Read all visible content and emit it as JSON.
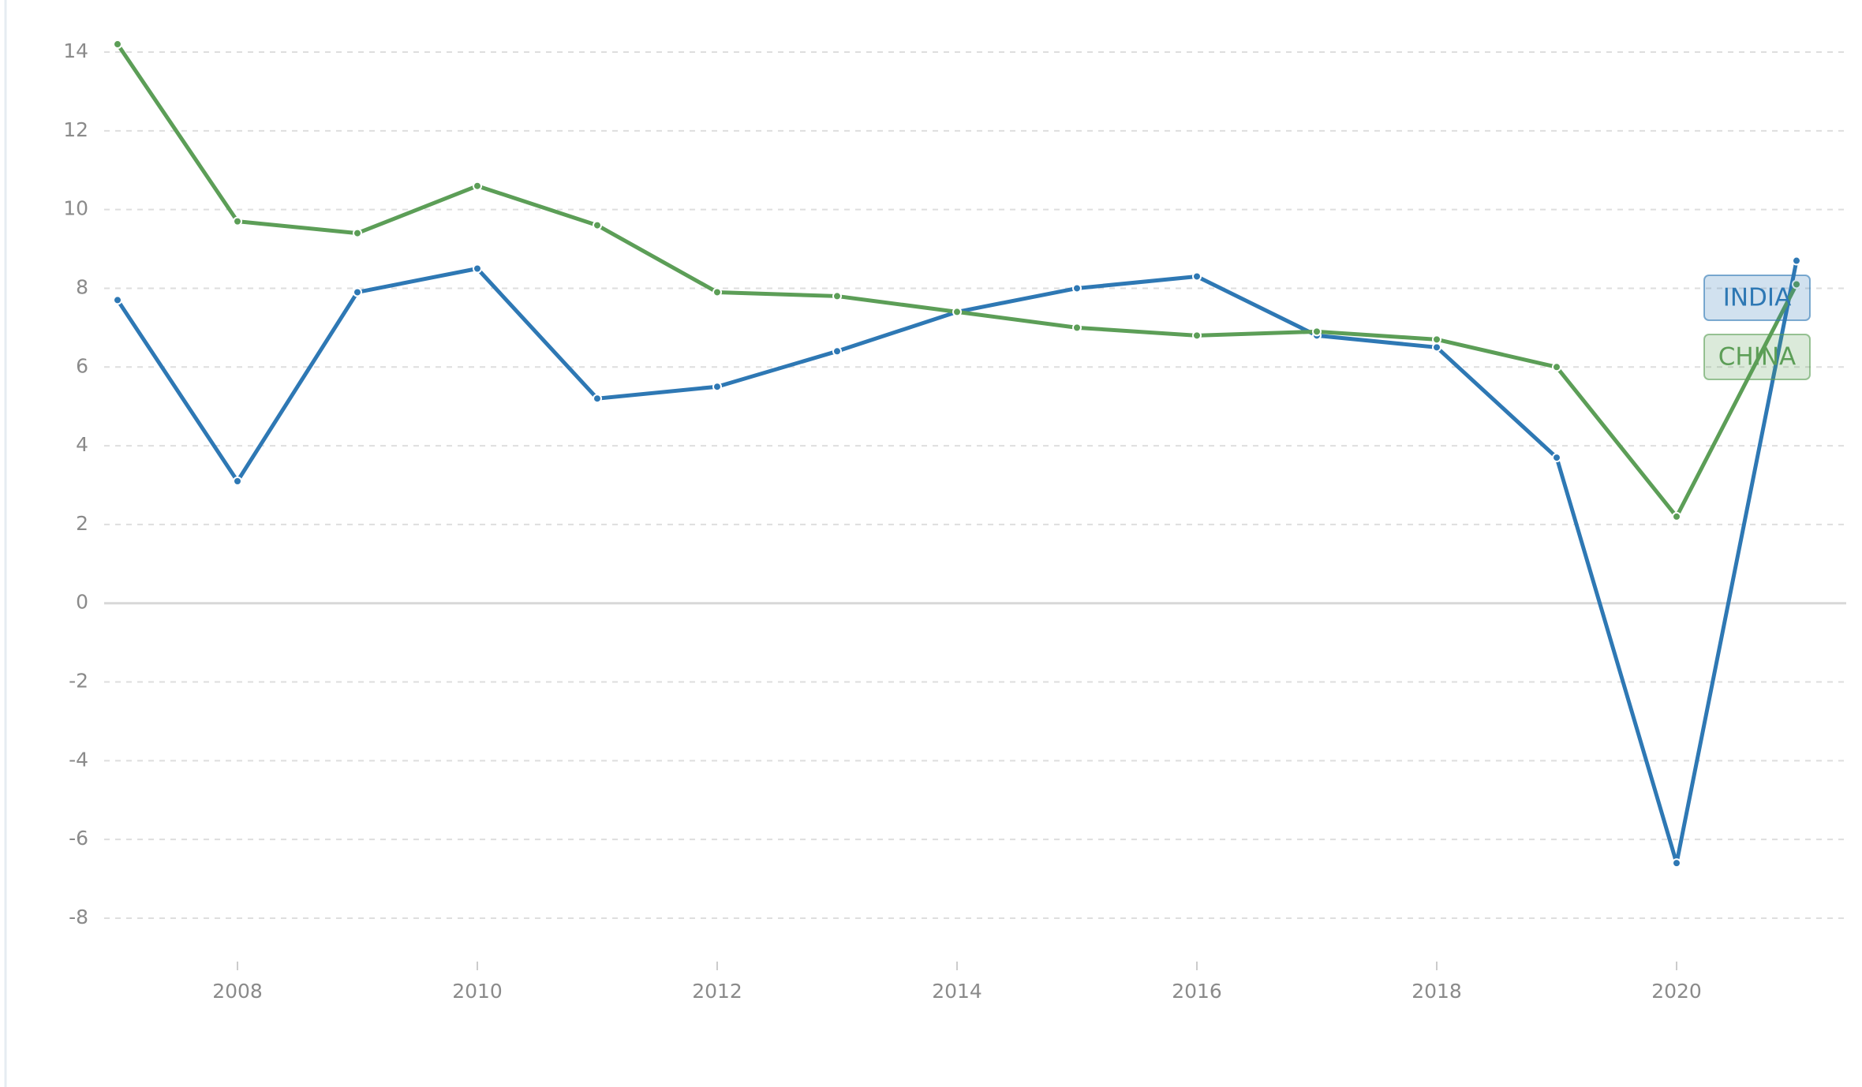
{
  "chart_data": {
    "type": "line",
    "x": [
      2007,
      2008,
      2009,
      2010,
      2011,
      2012,
      2013,
      2014,
      2015,
      2016,
      2017,
      2018,
      2019,
      2020,
      2021
    ],
    "series": [
      {
        "name": "INDIA",
        "color": "#2e78b4",
        "values": [
          7.7,
          3.1,
          7.9,
          8.5,
          5.2,
          5.5,
          6.4,
          7.4,
          8.0,
          8.3,
          6.8,
          6.5,
          3.7,
          -6.6,
          8.7
        ]
      },
      {
        "name": "CHINA",
        "color": "#5c9e57",
        "values": [
          14.2,
          9.7,
          9.4,
          10.6,
          9.6,
          7.9,
          7.8,
          7.4,
          7.0,
          6.8,
          6.9,
          6.7,
          6.0,
          2.2,
          8.1
        ]
      }
    ],
    "xlim": [
      2007,
      2021
    ],
    "xticks": [
      2008,
      2010,
      2012,
      2014,
      2016,
      2018,
      2020
    ],
    "ylim": [
      -8,
      14
    ],
    "yticks": [
      -8,
      -6,
      -4,
      -2,
      0,
      2,
      4,
      6,
      8,
      10,
      12,
      14
    ],
    "grid": true
  }
}
